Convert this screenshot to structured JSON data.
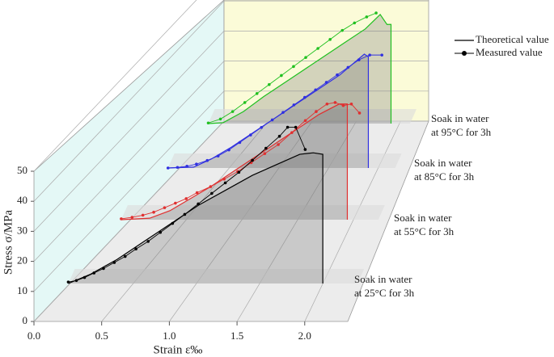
{
  "chart_data": {
    "type": "waterfall3d",
    "xlabel": "Strain ε‰",
    "ylabel": "Stress σ/MPa",
    "xlim": [
      0,
      2.3
    ],
    "xticks": [
      {
        "value": 0,
        "label": "0.0"
      },
      0.5,
      {
        "value": 1,
        "label": "1.0"
      },
      1.5,
      {
        "value": 2,
        "label": "2.0"
      }
    ],
    "ylim": [
      0,
      50
    ],
    "yticks": [
      0,
      10,
      20,
      30,
      40,
      50
    ],
    "grid": true,
    "legend": {
      "position": "upper right",
      "theoretical": "Theoretical value",
      "measured": "Measured value"
    },
    "series": [
      {
        "label": [
          "Soak in water",
          "at 25°C for 3h"
        ],
        "color": "#000000",
        "theoretical": {
          "x": [
            0.14,
            0.3,
            0.5,
            0.7,
            0.9,
            1.1,
            1.3,
            1.5,
            1.7,
            1.85,
            1.95,
            2.02,
            2.02
          ],
          "values": [
            0,
            3,
            8,
            14,
            20,
            26,
            31,
            36,
            40,
            43,
            43.5,
            43,
            0
          ]
        },
        "measured": {
          "x": [
            0.14,
            0.2,
            0.26,
            0.33,
            0.4,
            0.48,
            0.56,
            0.64,
            0.73,
            0.82,
            0.91,
            1.0,
            1.1,
            1.2,
            1.3,
            1.4,
            1.5,
            1.6,
            1.7,
            1.76,
            1.82,
            1.89
          ],
          "values": [
            0.5,
            1,
            2,
            3.5,
            5,
            7,
            9,
            11.5,
            14,
            17,
            20,
            23,
            26.5,
            30,
            33.5,
            37,
            41,
            45,
            49,
            52,
            52,
            44.6
          ]
        }
      },
      {
        "label": [
          "Soak in water",
          "at 55°C for 3h"
        ],
        "color": "#e03030",
        "theoretical": {
          "x": [
            0.34,
            0.55,
            0.7,
            0.85,
            1.0,
            1.2,
            1.4,
            1.6,
            1.8,
            1.95,
            2.01,
            2.01
          ],
          "values": [
            0,
            0.5,
            3,
            7,
            11,
            17,
            23,
            29,
            35,
            38.5,
            38.5,
            0
          ]
        },
        "measured": {
          "x": [
            0.34,
            0.42,
            0.5,
            0.58,
            0.66,
            0.74,
            0.82,
            0.9,
            1.0,
            1.1,
            1.2,
            1.3,
            1.4,
            1.5,
            1.6,
            1.7,
            1.78,
            1.86,
            1.92,
            1.98,
            2.04,
            2.1
          ],
          "values": [
            0.3,
            0.8,
            1.5,
            2.5,
            4,
            5.5,
            7,
            9,
            11,
            13.5,
            16,
            19,
            22,
            25,
            29,
            33,
            36,
            38.5,
            39,
            38,
            38.5,
            35.5
          ]
        }
      },
      {
        "label": [
          "Soak in water",
          "at 85°C for 3h"
        ],
        "color": "#3030e0",
        "theoretical": {
          "x": [
            0.53,
            0.72,
            0.85,
            1.0,
            1.2,
            1.4,
            1.6,
            1.8,
            1.98,
            2.01,
            2.01
          ],
          "values": [
            0,
            0.3,
            3,
            7,
            13,
            19,
            25,
            31,
            37.9,
            37,
            0
          ]
        },
        "measured": {
          "x": [
            0.53,
            0.6,
            0.67,
            0.74,
            0.82,
            0.9,
            0.98,
            1.06,
            1.14,
            1.22,
            1.3,
            1.38,
            1.46,
            1.54,
            1.62,
            1.7,
            1.78,
            1.86,
            1.94,
            2.02,
            2.11
          ],
          "values": [
            0,
            0.2,
            0.6,
            1.3,
            2.5,
            4,
            6,
            8.5,
            11,
            13.5,
            16,
            18.5,
            21,
            23.5,
            26,
            28.5,
            31,
            33.5,
            36,
            37.6,
            37.6
          ]
        }
      },
      {
        "label": [
          "Soak in water",
          "at 95°C for 3h"
        ],
        "color": "#20c020",
        "theoretical": {
          "x": [
            0.69,
            0.8,
            0.95,
            1.1,
            1.3,
            1.5,
            1.7,
            1.85,
            1.96,
            2.01,
            2.04,
            2.04
          ],
          "values": [
            0,
            0.3,
            4,
            9,
            15,
            21,
            27,
            31.5,
            36.3,
            33,
            33,
            0
          ]
        },
        "measured": {
          "x": [
            0.69,
            0.78,
            0.87,
            0.96,
            1.05,
            1.14,
            1.23,
            1.32,
            1.41,
            1.5,
            1.59,
            1.68,
            1.77,
            1.86,
            1.93
          ],
          "values": [
            0.2,
            1.5,
            4,
            7,
            10,
            13,
            16,
            19,
            22,
            25,
            28,
            31,
            33.5,
            35.5,
            36.8
          ]
        }
      }
    ]
  }
}
